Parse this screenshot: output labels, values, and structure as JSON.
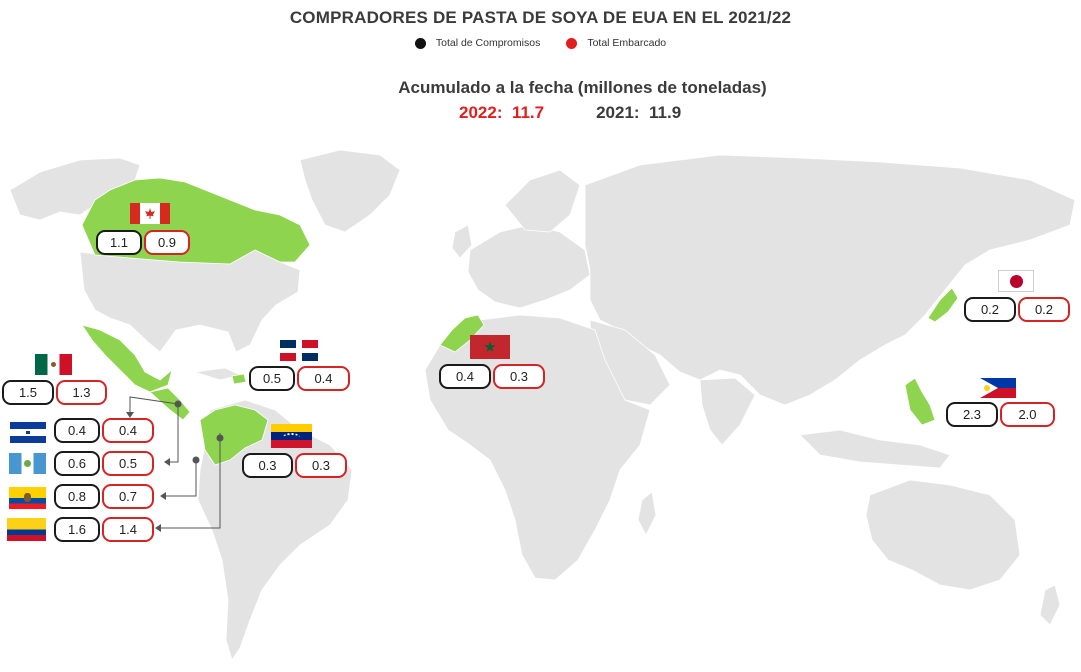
{
  "title": "COMPRADORES DE PASTA DE SOYA DE EUA EN EL 2021/22",
  "legend": [
    {
      "label": "Total de Compromisos",
      "color": "#111111"
    },
    {
      "label": "Total Embarcado",
      "color": "#e21d1d"
    }
  ],
  "subtitle": "Acumulado a la fecha (millones de toneladas)",
  "totals": {
    "y2022": "2022:",
    "v2022": "11.7",
    "y2021": "2021:",
    "v2021": "11.9"
  },
  "colors": {
    "highlight": "#8ed44f",
    "land": "#e3e3e3",
    "accent": "#e21d1d"
  },
  "countries": [
    {
      "name": "canada",
      "flag": "canada-flag",
      "compromisos": "1.1",
      "embarcado": "0.9"
    },
    {
      "name": "mexico",
      "flag": "mexico-flag",
      "compromisos": "1.5",
      "embarcado": "1.3"
    },
    {
      "name": "honduras",
      "flag": "honduras-flag",
      "compromisos": "0.4",
      "embarcado": "0.4"
    },
    {
      "name": "guatemala",
      "flag": "guatemala-flag",
      "compromisos": "0.6",
      "embarcado": "0.5"
    },
    {
      "name": "ecuador",
      "flag": "ecuador-flag",
      "compromisos": "0.8",
      "embarcado": "0.7"
    },
    {
      "name": "colombia",
      "flag": "colombia-flag",
      "compromisos": "1.6",
      "embarcado": "1.4"
    },
    {
      "name": "dominican-republic",
      "flag": "dominican-republic-flag",
      "compromisos": "0.5",
      "embarcado": "0.4"
    },
    {
      "name": "venezuela",
      "flag": "venezuela-flag",
      "compromisos": "0.3",
      "embarcado": "0.3"
    },
    {
      "name": "morocco",
      "flag": "morocco-flag",
      "compromisos": "0.4",
      "embarcado": "0.3"
    },
    {
      "name": "japan",
      "flag": "japan-flag",
      "compromisos": "0.2",
      "embarcado": "0.2"
    },
    {
      "name": "philippines",
      "flag": "philippines-flag",
      "compromisos": "2.3",
      "embarcado": "2.0"
    }
  ]
}
